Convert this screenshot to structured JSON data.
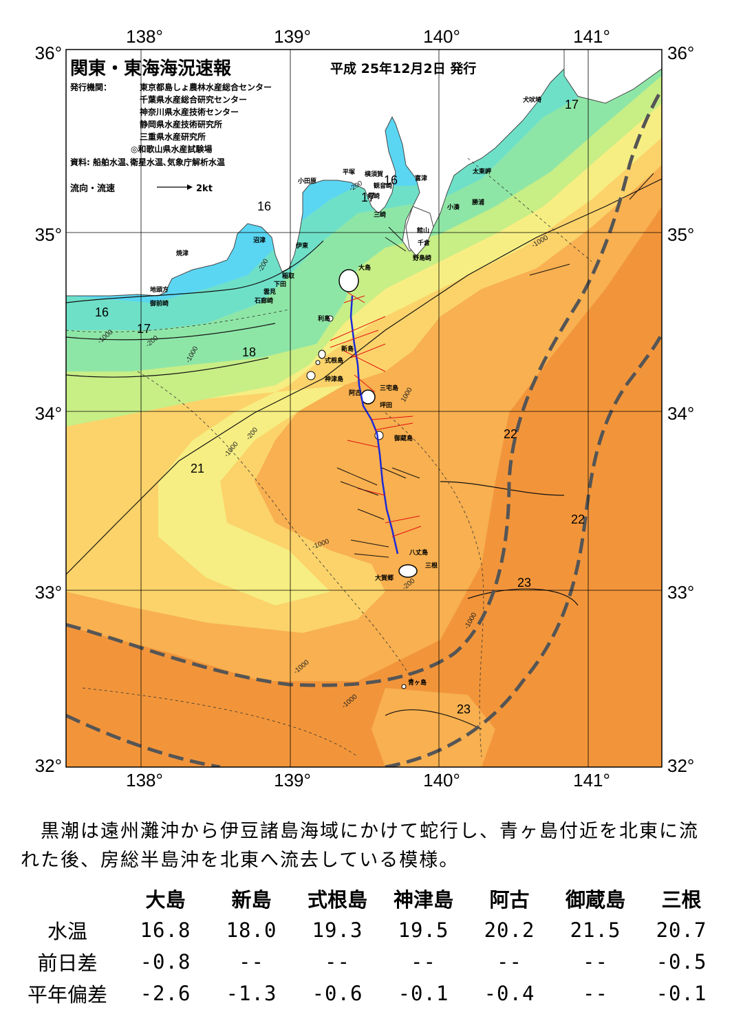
{
  "header": {
    "title": "関東・東海海況速報",
    "date": "平成 25年12月2日 発行",
    "issuer_label": "発行機関：",
    "issuers": [
      "東京都島しょ農林水産総合センター",
      "千葉県水産総合研究センター",
      "神奈川県水産技術センター",
      "静岡県水産技術研究所",
      "三重県水産研究所",
      "◎和歌山県水産試験場"
    ],
    "source": "資料: 船舶水温､衛星水温､気象庁解析水温",
    "legend_label": "流向・流速",
    "legend_value": "2kt"
  },
  "axes": {
    "lon_ticks": [
      "138°",
      "139°",
      "140°",
      "141°"
    ],
    "lat_ticks": [
      "36°",
      "35°",
      "34°",
      "33°",
      "32°"
    ]
  },
  "isotherm_labels": [
    "16",
    "17",
    "18",
    "21",
    "22",
    "22",
    "23",
    "23",
    "16",
    "17",
    "16",
    "17"
  ],
  "depth_labels": [
    "-200",
    "-1000",
    "-200",
    "-1000",
    "-200",
    "-1000",
    "-1000",
    "-1000",
    "-200",
    "-1000",
    "-200",
    "1000",
    "-1000",
    "-1000"
  ],
  "place_labels": [
    "大島",
    "利島",
    "式根島",
    "神津島",
    "三宅島",
    "坪田",
    "御蔵島",
    "八丈島",
    "三根",
    "大賀郷",
    "青ヶ島",
    "小田原",
    "平塚",
    "横須賀",
    "観音崎",
    "剣崎",
    "三崎",
    "富津",
    "館山",
    "千倉",
    "野島崎",
    "太東岬",
    "勝浦",
    "小湊",
    "犬吠埼",
    "沼津",
    "焼津",
    "伊東",
    "稲取",
    "下田",
    "雲見",
    "石廊崎",
    "地頭方",
    "御前崎",
    "阿古",
    "新島"
  ],
  "summary": "　黒潮は遠州灘沖から伊豆諸島海域にかけて蛇行し、青ヶ島付近を北東に流れた後、房総半島沖を北東へ流去している模様。",
  "table": {
    "columns": [
      "大島",
      "新島",
      "式根島",
      "神津島",
      "阿古",
      "御蔵島",
      "三根"
    ],
    "rows": [
      {
        "label": "水温",
        "values": [
          "16.8",
          "18.0",
          "19.3",
          "19.5",
          "20.2",
          "21.5",
          "20.7"
        ]
      },
      {
        "label": "前日差",
        "values": [
          "-0.8",
          "--",
          "--",
          "--",
          "--",
          "--",
          "-0.5"
        ]
      },
      {
        "label": "平年偏差",
        "values": [
          "-2.6",
          "-1.3",
          "-0.6",
          "-0.1",
          "-0.4",
          "--",
          "-0.1"
        ]
      }
    ]
  },
  "colors": {
    "t16": "#5ad6f2",
    "t17": "#6fe0c8",
    "t18": "#8ee6a6",
    "t19": "#c8ee86",
    "t20": "#f6ee82",
    "t21": "#fbd36a",
    "t22": "#f8b050",
    "t23": "#f2953a",
    "kuroshio": "#555555",
    "track": "#1a2ad8",
    "arrow_red": "#e01010"
  }
}
